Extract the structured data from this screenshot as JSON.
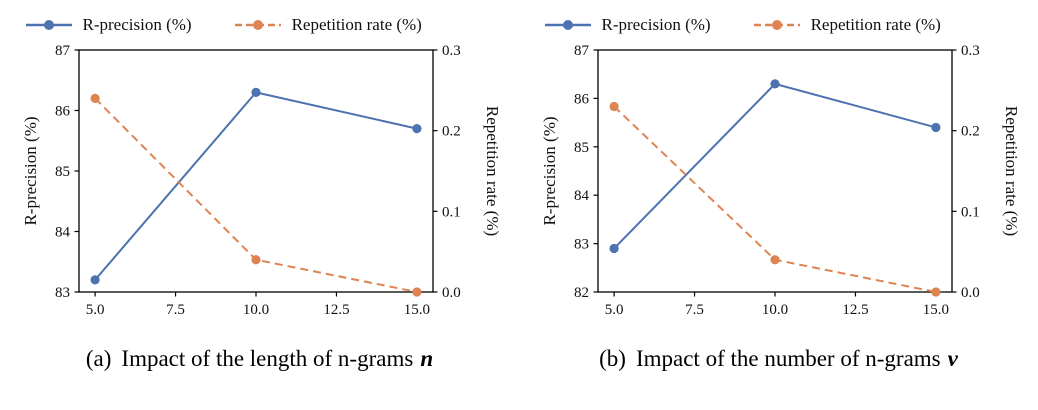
{
  "panels": [
    {
      "caption": {
        "index": "(a)",
        "text": "Impact of the length of n-grams",
        "variable": "n"
      }
    },
    {
      "caption": {
        "index": "(b)",
        "text": "Impact of the number of n-grams",
        "variable": "v"
      }
    }
  ],
  "chart_data": [
    {
      "type": "line",
      "title": "(a) Impact of the length of n-grams n",
      "grid": false,
      "legend_position": "top",
      "x": [
        5,
        10,
        15
      ],
      "x_axis": {
        "label": "",
        "lim": [
          4.5,
          15.5
        ],
        "ticks": [
          5,
          7.5,
          10,
          12.5,
          15
        ],
        "tick_labels": [
          "5.0",
          "7.5",
          "10.0",
          "12.5",
          "15.0"
        ]
      },
      "left_axis": {
        "label": "R-precision (%)",
        "lim": [
          83,
          87
        ],
        "ticks": [
          83,
          84,
          85,
          86,
          87
        ],
        "tick_labels": [
          "83",
          "84",
          "85",
          "86",
          "87"
        ]
      },
      "right_axis": {
        "label": "Repetition rate (%)",
        "lim": [
          0,
          0.3
        ],
        "ticks": [
          0,
          0.1,
          0.2,
          0.3
        ],
        "tick_labels": [
          "0.0",
          "0.1",
          "0.2",
          "0.3"
        ]
      },
      "series": [
        {
          "name": "R-precision (%)",
          "axis": "left",
          "color": "#4C72B0",
          "line_style": "solid",
          "marker": "circle",
          "values": [
            83.2,
            86.3,
            85.7
          ]
        },
        {
          "name": "Repetition rate (%)",
          "axis": "right",
          "color": "#DD8452",
          "line_style": "dashed",
          "marker": "circle",
          "values": [
            0.24,
            0.04,
            0.0
          ]
        }
      ]
    },
    {
      "type": "line",
      "title": "(b) Impact of the number of n-grams v",
      "grid": false,
      "legend_position": "top",
      "x": [
        5,
        10,
        15
      ],
      "x_axis": {
        "label": "",
        "lim": [
          4.5,
          15.5
        ],
        "ticks": [
          5,
          7.5,
          10,
          12.5,
          15
        ],
        "tick_labels": [
          "5.0",
          "7.5",
          "10.0",
          "12.5",
          "15.0"
        ]
      },
      "left_axis": {
        "label": "R-precision (%)",
        "lim": [
          82,
          87
        ],
        "ticks": [
          82,
          83,
          84,
          85,
          86,
          87
        ],
        "tick_labels": [
          "82",
          "83",
          "84",
          "85",
          "86",
          "87"
        ]
      },
      "right_axis": {
        "label": "Repetition rate (%)",
        "lim": [
          0,
          0.3
        ],
        "ticks": [
          0,
          0.1,
          0.2,
          0.3
        ],
        "tick_labels": [
          "0.0",
          "0.1",
          "0.2",
          "0.3"
        ]
      },
      "series": [
        {
          "name": "R-precision (%)",
          "axis": "left",
          "color": "#4C72B0",
          "line_style": "solid",
          "marker": "circle",
          "values": [
            82.9,
            86.3,
            85.4
          ]
        },
        {
          "name": "Repetition rate (%)",
          "axis": "right",
          "color": "#DD8452",
          "line_style": "dashed",
          "marker": "circle",
          "values": [
            0.23,
            0.04,
            0.0
          ]
        }
      ]
    }
  ]
}
